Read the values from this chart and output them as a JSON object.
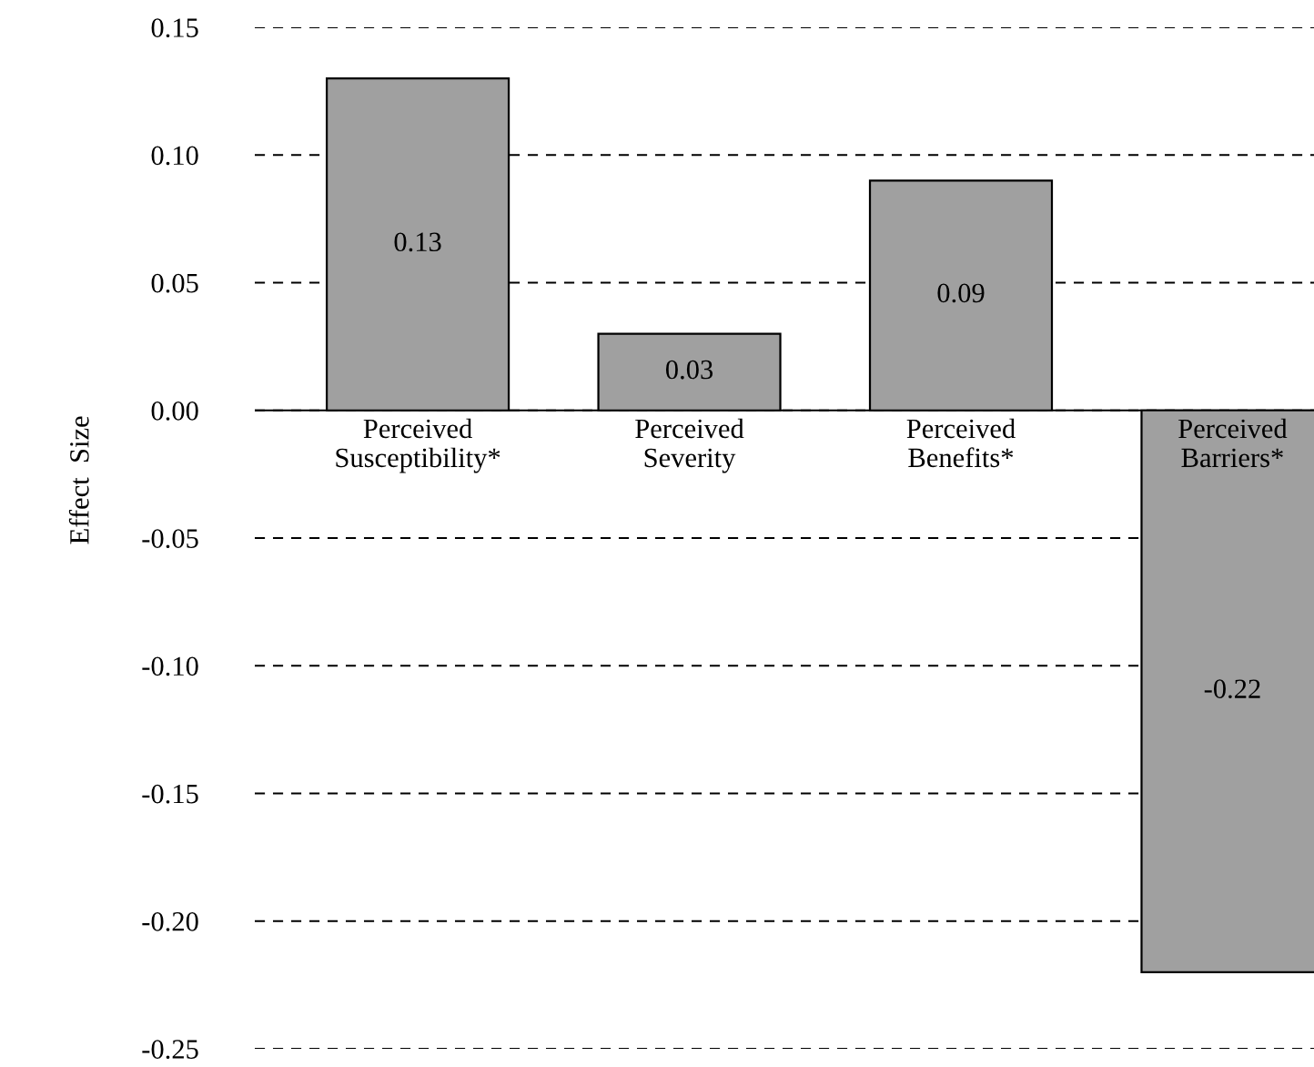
{
  "chart_data": {
    "type": "bar",
    "ylabel": "Effect  Size",
    "categories": [
      "Perceived\nSusceptibility*",
      "Perceived\nSeverity",
      "Perceived\nBenefits*",
      "Perceived\nBarriers*"
    ],
    "values": [
      0.13,
      0.03,
      0.09,
      -0.22
    ],
    "color": "#a0a0a0",
    "ylim": [
      -0.25,
      0.15
    ],
    "yticks": [
      {
        "value": 0.15,
        "label": "0.15"
      },
      {
        "value": 0.1,
        "label": "0.10"
      },
      {
        "value": 0.05,
        "label": "0.05"
      },
      {
        "value": 0,
        "label": "0.00"
      },
      {
        "value": -0.05,
        "label": "-0.05"
      },
      {
        "value": -0.1,
        "label": "-0.10"
      },
      {
        "value": -0.15,
        "label": "-0.15"
      },
      {
        "value": -0.2,
        "label": "-0.20"
      },
      {
        "value": -0.25,
        "label": "-0.25"
      }
    ],
    "grid": "y",
    "data_labels": true
  }
}
